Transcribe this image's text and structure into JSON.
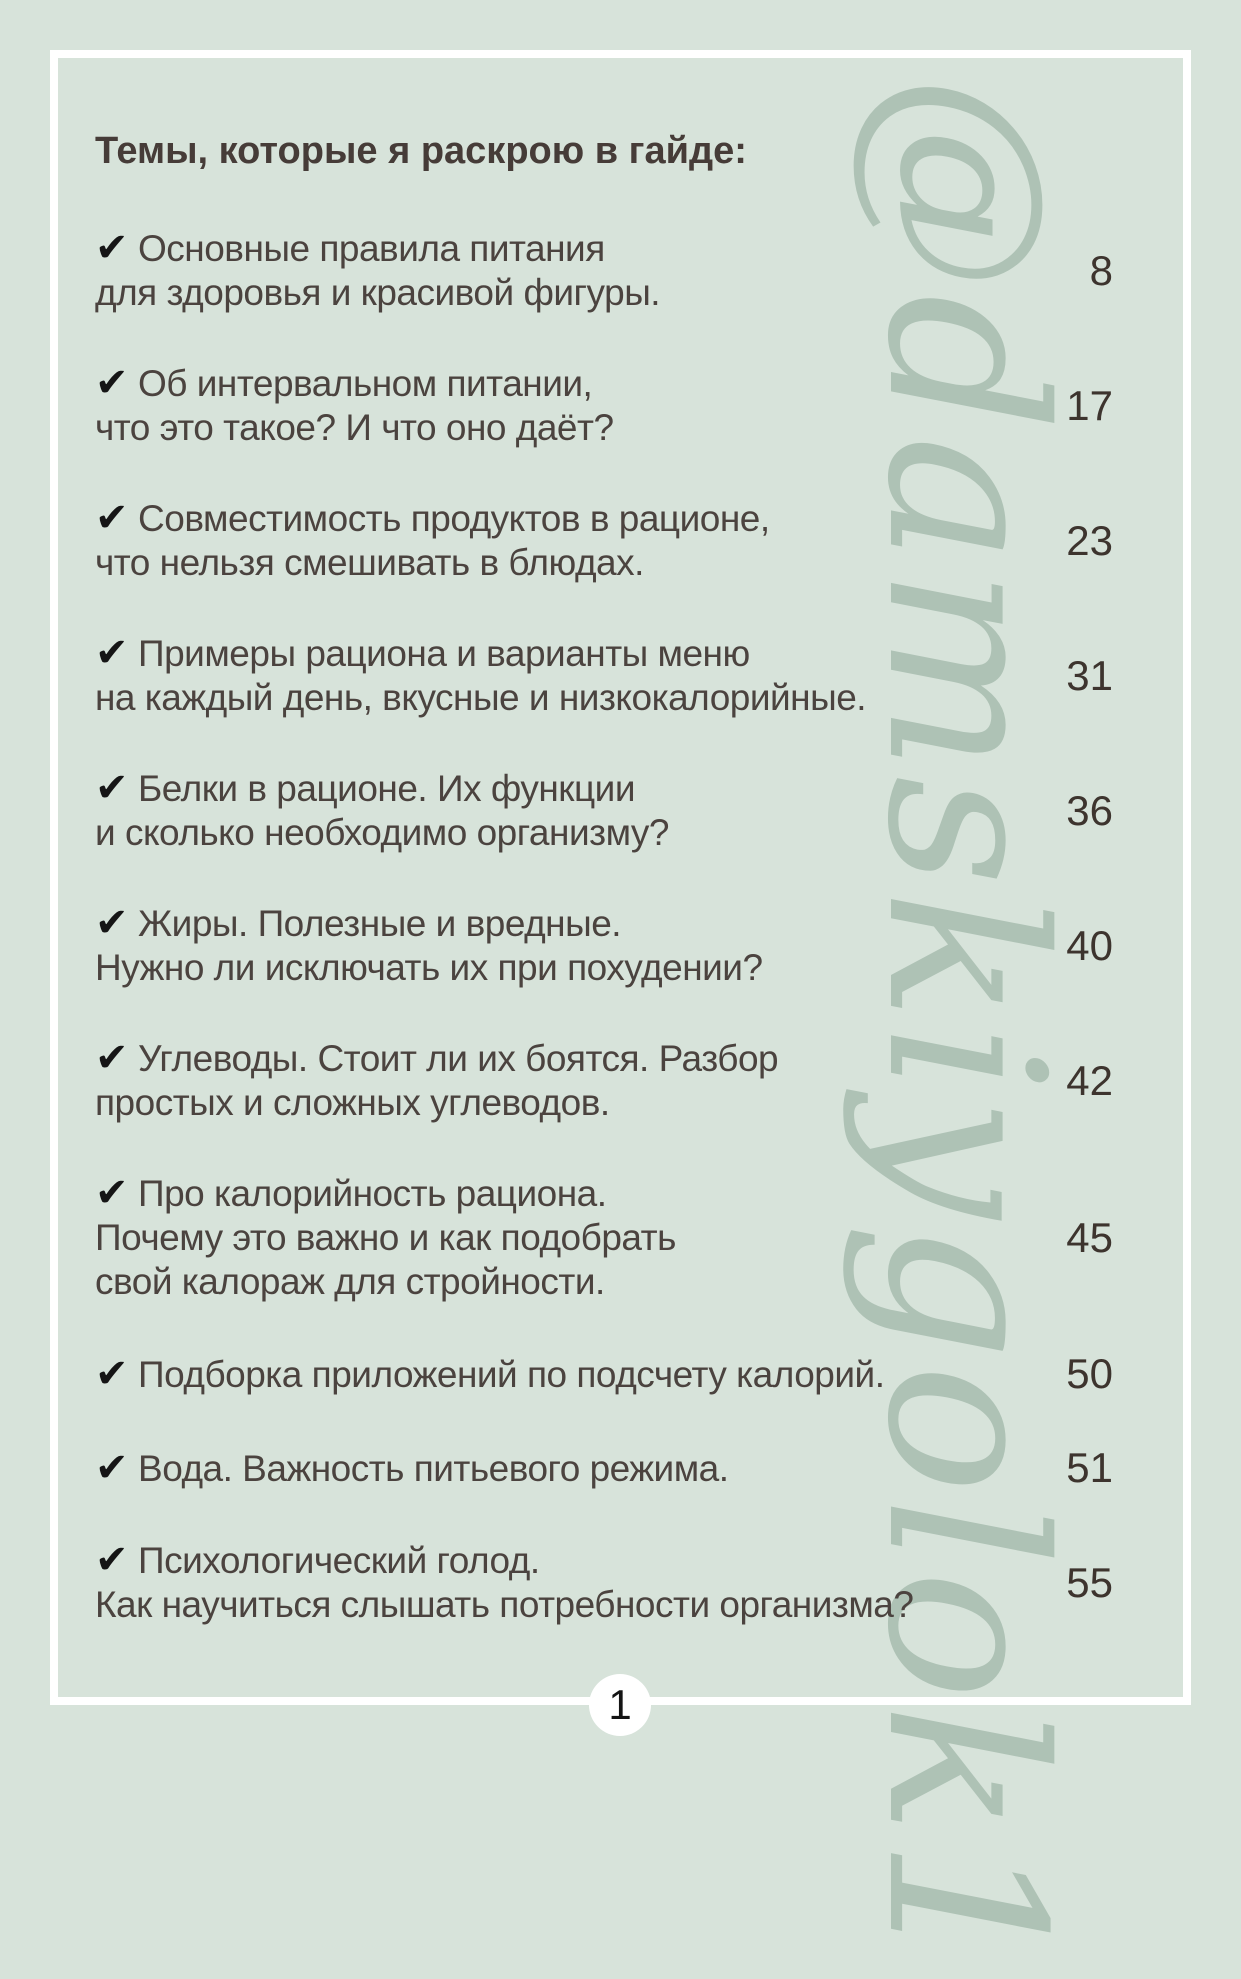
{
  "title": "Темы, которые я раскрою в гайде:",
  "checkmark_glyph": "✔",
  "watermark": {
    "text": "@damskiygolok1"
  },
  "toc": {
    "items": [
      {
        "lines": [
          "Основные правила питания",
          "для здоровья и красивой фигуры."
        ],
        "page": "8"
      },
      {
        "lines": [
          "Об интервальном питании,",
          "что это такое? И что оно даёт?"
        ],
        "page": "17"
      },
      {
        "lines": [
          "Совместимость продуктов в рационе,",
          "что нельзя смешивать в блюдах."
        ],
        "page": "23"
      },
      {
        "lines": [
          "Примеры рациона и варианты меню",
          "на каждый день, вкусные и низкокалорийные."
        ],
        "page": "31"
      },
      {
        "lines": [
          "Белки в рационе. Их функции",
          "и сколько необходимо организму?"
        ],
        "page": "36"
      },
      {
        "lines": [
          "Жиры. Полезные и вредные.",
          "Нужно ли исключать их при похудении?"
        ],
        "page": "40"
      },
      {
        "lines": [
          "Углеводы. Стоит ли их боятся. Разбор",
          "простых и сложных углеводов."
        ],
        "page": "42"
      },
      {
        "lines": [
          "Про калорийность рациона.",
          "Почему это важно и как подобрать",
          "свой калораж для стройности."
        ],
        "page": "45"
      },
      {
        "lines": [
          "Подборка приложений по подсчету калорий."
        ],
        "page": "50"
      },
      {
        "lines": [
          "Вода. Важность питьевого режима."
        ],
        "page": "51"
      },
      {
        "lines": [
          "Психологический голод.",
          "Как научиться слышать потребности организма?"
        ],
        "page": "55"
      }
    ]
  },
  "footer": {
    "page_number": "1"
  },
  "colors": {
    "background": "#d7e3da",
    "frame_border": "#ffffff",
    "title_text": "#463c38",
    "body_text": "#4b433f",
    "page_numbers": "#3d342e",
    "checkmark": "#151515",
    "watermark": "#aec2b5"
  }
}
